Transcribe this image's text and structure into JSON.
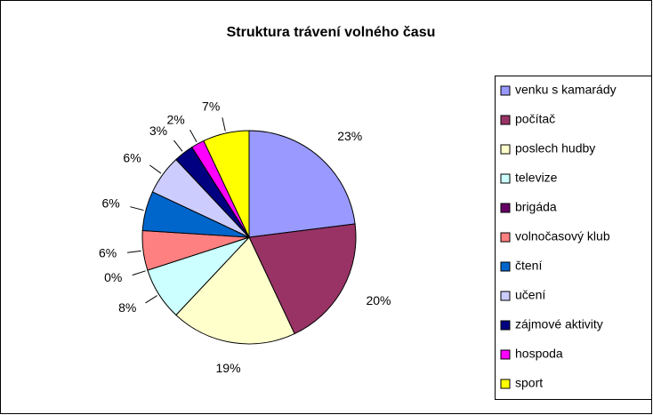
{
  "chart_data": {
    "type": "pie",
    "title": "Struktura trávení volného času",
    "categories": [
      "venku s kamarády",
      "počítač",
      "poslech hudby",
      "televize",
      "brigáda",
      "volnočasový klub",
      "čtení",
      "učení",
      "zájmové aktivity",
      "hospoda",
      "sport"
    ],
    "values": [
      23,
      20,
      19,
      8,
      0,
      6,
      6,
      6,
      3,
      2,
      7
    ],
    "value_labels": [
      "23%",
      "20%",
      "19%",
      "8%",
      "0%",
      "6%",
      "6%",
      "6%",
      "3%",
      "2%",
      "7%"
    ],
    "colors": [
      "#9999FF",
      "#993366",
      "#FFFFCC",
      "#CCFFFF",
      "#660066",
      "#FF8080",
      "#0066CC",
      "#CCCCFF",
      "#000080",
      "#FF00FF",
      "#FFFF00"
    ],
    "legend": "right"
  }
}
